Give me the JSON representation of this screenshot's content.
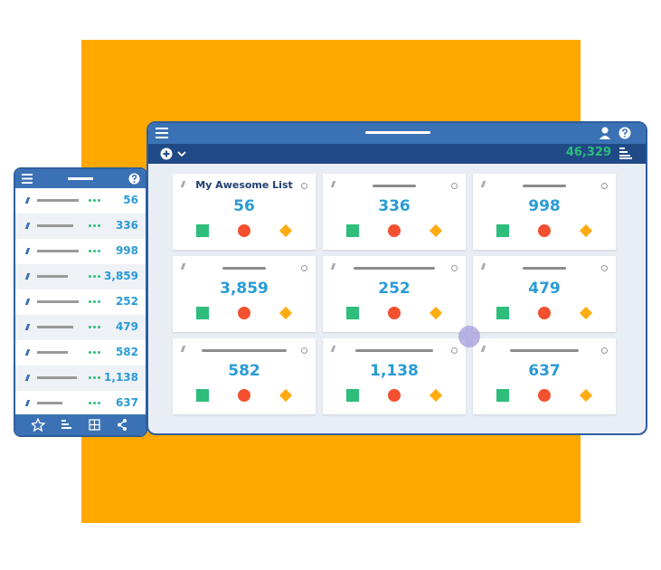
{
  "list_title": "My Awesome List",
  "total": "46,329",
  "items": [
    "56",
    "336",
    "998",
    "3,859",
    "252",
    "479",
    "582",
    "1,138",
    "637"
  ]
}
